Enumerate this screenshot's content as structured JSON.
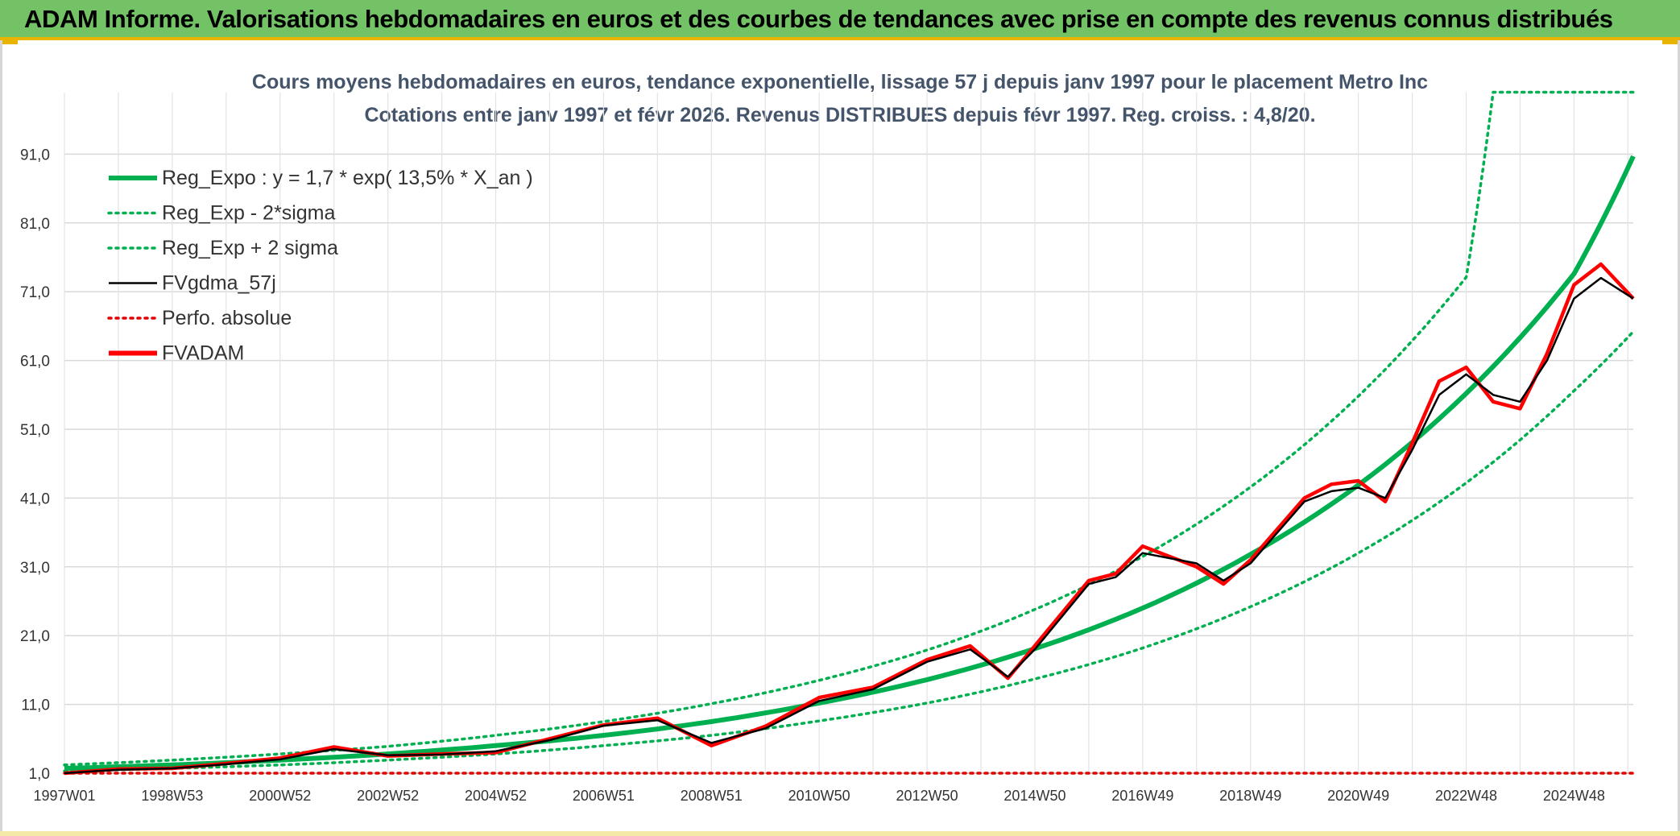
{
  "header": {
    "title": "ADAM Informe. Valorisations hebdomadaires en euros et des courbes de tendances avec prise en compte des revenus connus distribués"
  },
  "chart_data": {
    "type": "line",
    "title_line1": "Cours moyens hebdomadaires en euros, tendance exponentielle, lissage 57 j depuis janv 1997 pour le placement Metro Inc",
    "title_line2": "Cotations entre janv 1997 et févr 2026. Revenus DISTRIBUES depuis févr 1997. Reg. croiss. : 4,8/20.",
    "ylim": [
      1,
      100
    ],
    "yticks": [
      "1,0",
      "11,0",
      "21,0",
      "31,0",
      "41,0",
      "51,0",
      "61,0",
      "71,0",
      "81,0",
      "91,0"
    ],
    "xlim": [
      1997.0,
      2026.1
    ],
    "xticks": [
      "1997W01",
      "1998W53",
      "2000W52",
      "2002W52",
      "2004W52",
      "2006W51",
      "2008W51",
      "2010W50",
      "2012W50",
      "2014W50",
      "2016W49",
      "2018W49",
      "2020W49",
      "2022W48",
      "2024W48"
    ],
    "grid": true,
    "legend_position": "top-left",
    "series": [
      {
        "name": "Reg_Expo : y = 1,7 * exp( 13,5% *  X_an )",
        "color": "#00b050",
        "style": "solid-thick",
        "x": [
          1997,
          1999,
          2001,
          2003,
          2005,
          2007,
          2009,
          2011,
          2013,
          2015,
          2017,
          2019,
          2021,
          2023,
          2025,
          2026.1
        ],
        "values": [
          1.7,
          2.2,
          2.9,
          3.8,
          5.0,
          6.5,
          8.5,
          11.2,
          14.6,
          19.1,
          25.0,
          32.8,
          42.9,
          56.2,
          73.6,
          90.7
        ]
      },
      {
        "name": "Reg_Exp - 2*sigma",
        "color": "#00b050",
        "style": "dotted",
        "x": [
          1997,
          1999,
          2001,
          2003,
          2005,
          2007,
          2009,
          2011,
          2013,
          2015,
          2017,
          2019,
          2021,
          2023,
          2025,
          2026.1
        ],
        "values": [
          1.3,
          1.7,
          2.2,
          2.9,
          3.8,
          5.0,
          6.5,
          8.6,
          11.2,
          14.7,
          19.2,
          25.2,
          33.0,
          43.2,
          56.6,
          65.2
        ]
      },
      {
        "name": "Reg_Exp + 2 sigma",
        "color": "#00b050",
        "style": "dotted",
        "x": [
          1997,
          1999,
          2001,
          2003,
          2005,
          2007,
          2009,
          2011,
          2013,
          2015,
          2017,
          2019,
          2021,
          2023,
          2023.5,
          2026.1
        ],
        "values": [
          2.2,
          2.9,
          3.8,
          4.9,
          6.5,
          8.5,
          11.1,
          14.5,
          18.9,
          24.8,
          32.5,
          42.6,
          55.8,
          73.1,
          100,
          100
        ]
      },
      {
        "name": "FVgdma_57j",
        "color": "#000000",
        "style": "solid",
        "x": [
          1997,
          1998,
          1999,
          2000,
          2001,
          2002,
          2003,
          2004,
          2005,
          2006,
          2007,
          2008,
          2009,
          2010,
          2011,
          2012,
          2013,
          2013.8,
          2014.5,
          2015,
          2016,
          2016.5,
          2017,
          2018,
          2018.5,
          2019,
          2019.5,
          2020,
          2020.5,
          2021,
          2021.5,
          2022,
          2022.5,
          2023,
          2023.5,
          2024,
          2024.5,
          2025,
          2025.5,
          2026.1
        ],
        "values": [
          1.0,
          1.5,
          1.7,
          2.3,
          3.0,
          4.5,
          3.6,
          3.7,
          4.2,
          5.8,
          7.9,
          8.7,
          5.4,
          7.5,
          11.5,
          13.2,
          17.2,
          19.0,
          15.0,
          19.0,
          28.5,
          29.5,
          33.0,
          31.5,
          29.0,
          31.5,
          36.0,
          40.5,
          42.0,
          42.5,
          41.0,
          48.0,
          56.0,
          59.0,
          56.0,
          55.0,
          61.0,
          70.0,
          73.0,
          70.0
        ]
      },
      {
        "name": "Perfo. absolue",
        "color": "#e00000",
        "style": "dotted",
        "x": [
          1997,
          2026.1
        ],
        "values": [
          1.0,
          1.0
        ]
      },
      {
        "name": "FVADAM",
        "color": "#ff0000",
        "style": "solid-thick",
        "x": [
          1997,
          1998,
          1999,
          2000,
          2001,
          2002,
          2003,
          2004,
          2005,
          2006,
          2007,
          2008,
          2009,
          2010,
          2011,
          2012,
          2013,
          2013.8,
          2014.5,
          2015,
          2016,
          2016.5,
          2017,
          2018,
          2018.5,
          2019,
          2019.5,
          2020,
          2020.5,
          2021,
          2021.5,
          2022,
          2022.5,
          2023,
          2023.5,
          2024,
          2024.5,
          2025,
          2025.5,
          2026.1
        ],
        "values": [
          1.0,
          1.6,
          1.7,
          2.4,
          3.2,
          4.8,
          3.5,
          3.8,
          4.0,
          6.0,
          8.0,
          9.0,
          5.0,
          7.8,
          12.0,
          13.5,
          17.5,
          19.5,
          14.8,
          19.5,
          29.0,
          30.0,
          34.0,
          31.0,
          28.5,
          32.0,
          36.5,
          41.0,
          43.0,
          43.5,
          40.5,
          49.0,
          58.0,
          60.0,
          55.0,
          54.0,
          62.0,
          72.0,
          75.0,
          70.0
        ]
      }
    ]
  }
}
